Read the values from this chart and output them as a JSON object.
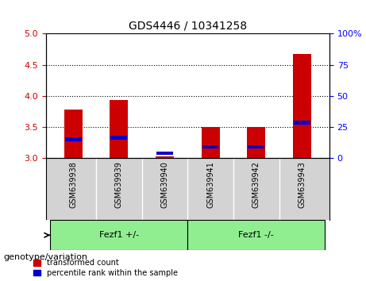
{
  "title": "GDS4446 / 10341258",
  "samples": [
    "GSM639938",
    "GSM639939",
    "GSM639940",
    "GSM639941",
    "GSM639942",
    "GSM639943"
  ],
  "red_values": [
    3.78,
    3.93,
    3.03,
    3.5,
    3.5,
    4.67
  ],
  "blue_values": [
    3.3,
    3.33,
    3.08,
    3.18,
    3.18,
    3.57
  ],
  "ylim_left": [
    3.0,
    5.0
  ],
  "ylim_right": [
    0,
    100
  ],
  "yticks_left": [
    3.0,
    3.5,
    4.0,
    4.5,
    5.0
  ],
  "yticks_right": [
    0,
    25,
    50,
    75,
    100
  ],
  "ytick_labels_right": [
    "0",
    "25",
    "50",
    "75",
    "100%"
  ],
  "gridlines": [
    3.5,
    4.0,
    4.5
  ],
  "bar_bottom": 3.0,
  "group1_label": "Fezf1 +/-",
  "group2_label": "Fezf1 -/-",
  "group1_indices": [
    0,
    1,
    2
  ],
  "group2_indices": [
    3,
    4,
    5
  ],
  "genotype_label": "genotype/variation",
  "legend1": "transformed count",
  "legend2": "percentile rank within the sample",
  "red_color": "#cc0000",
  "blue_color": "#0000cc",
  "group_bg": "#90ee90",
  "sample_bg": "#d3d3d3",
  "bar_width": 0.4
}
